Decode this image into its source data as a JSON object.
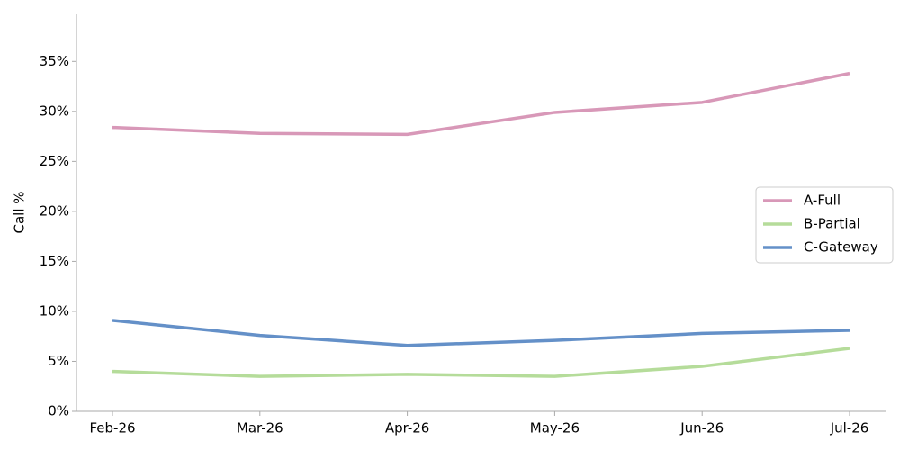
{
  "chart_data": {
    "type": "line",
    "ylabel": "Call %",
    "categories": [
      "Feb-26",
      "Mar-26",
      "Apr-26",
      "May-26",
      "Jun-26",
      "Jul-26"
    ],
    "series": [
      {
        "name": "A-Full",
        "color": "#d898b8",
        "values": [
          28.4,
          27.8,
          27.7,
          29.9,
          30.9,
          33.8
        ]
      },
      {
        "name": "B-Partial",
        "color": "#b5dc9a",
        "values": [
          4.0,
          3.5,
          3.7,
          3.5,
          4.5,
          6.3
        ]
      },
      {
        "name": "C-Gateway",
        "color": "#6490c8",
        "values": [
          9.1,
          7.6,
          6.6,
          7.1,
          7.8,
          8.1
        ]
      }
    ],
    "ylim": [
      0,
      39.8
    ],
    "yticks": [
      {
        "value": 0,
        "label": "0%"
      },
      {
        "value": 5,
        "label": "5%"
      },
      {
        "value": 10,
        "label": "10%"
      },
      {
        "value": 15,
        "label": "15%"
      },
      {
        "value": 20,
        "label": "20%"
      },
      {
        "value": 25,
        "label": "25%"
      },
      {
        "value": 30,
        "label": "30%"
      },
      {
        "value": 35,
        "label": "35%"
      }
    ],
    "grid": false,
    "legend": "center right"
  }
}
